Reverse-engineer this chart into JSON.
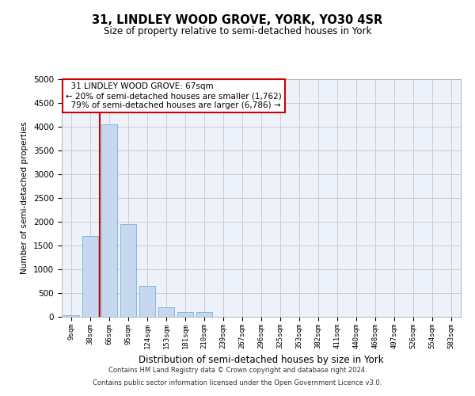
{
  "title": "31, LINDLEY WOOD GROVE, YORK, YO30 4SR",
  "subtitle": "Size of property relative to semi-detached houses in York",
  "xlabel": "Distribution of semi-detached houses by size in York",
  "ylabel": "Number of semi-detached properties",
  "footer_line1": "Contains HM Land Registry data © Crown copyright and database right 2024.",
  "footer_line2": "Contains public sector information licensed under the Open Government Licence v3.0.",
  "bar_labels": [
    "9sqm",
    "38sqm",
    "66sqm",
    "95sqm",
    "124sqm",
    "153sqm",
    "181sqm",
    "210sqm",
    "239sqm",
    "267sqm",
    "296sqm",
    "325sqm",
    "353sqm",
    "382sqm",
    "411sqm",
    "440sqm",
    "468sqm",
    "497sqm",
    "526sqm",
    "554sqm",
    "583sqm"
  ],
  "bar_values": [
    30,
    1700,
    4050,
    1950,
    650,
    200,
    100,
    100,
    0,
    0,
    0,
    0,
    0,
    0,
    0,
    0,
    0,
    0,
    0,
    0,
    0
  ],
  "bar_color": "#c5d8ef",
  "bar_edge_color": "#7aafd4",
  "property_line_x": 1.5,
  "property_label": "31 LINDLEY WOOD GROVE: 67sqm",
  "smaller_pct": "20%",
  "smaller_n": "1,762",
  "larger_pct": "79%",
  "larger_n": "6,786",
  "annotation_box_color": "#cc0000",
  "line_color": "#cc0000",
  "ylim": [
    0,
    5000
  ],
  "yticks": [
    0,
    500,
    1000,
    1500,
    2000,
    2500,
    3000,
    3500,
    4000,
    4500,
    5000
  ],
  "grid_color": "#cccccc",
  "bg_color": "#edf2fa",
  "fig_bg_color": "#ffffff"
}
